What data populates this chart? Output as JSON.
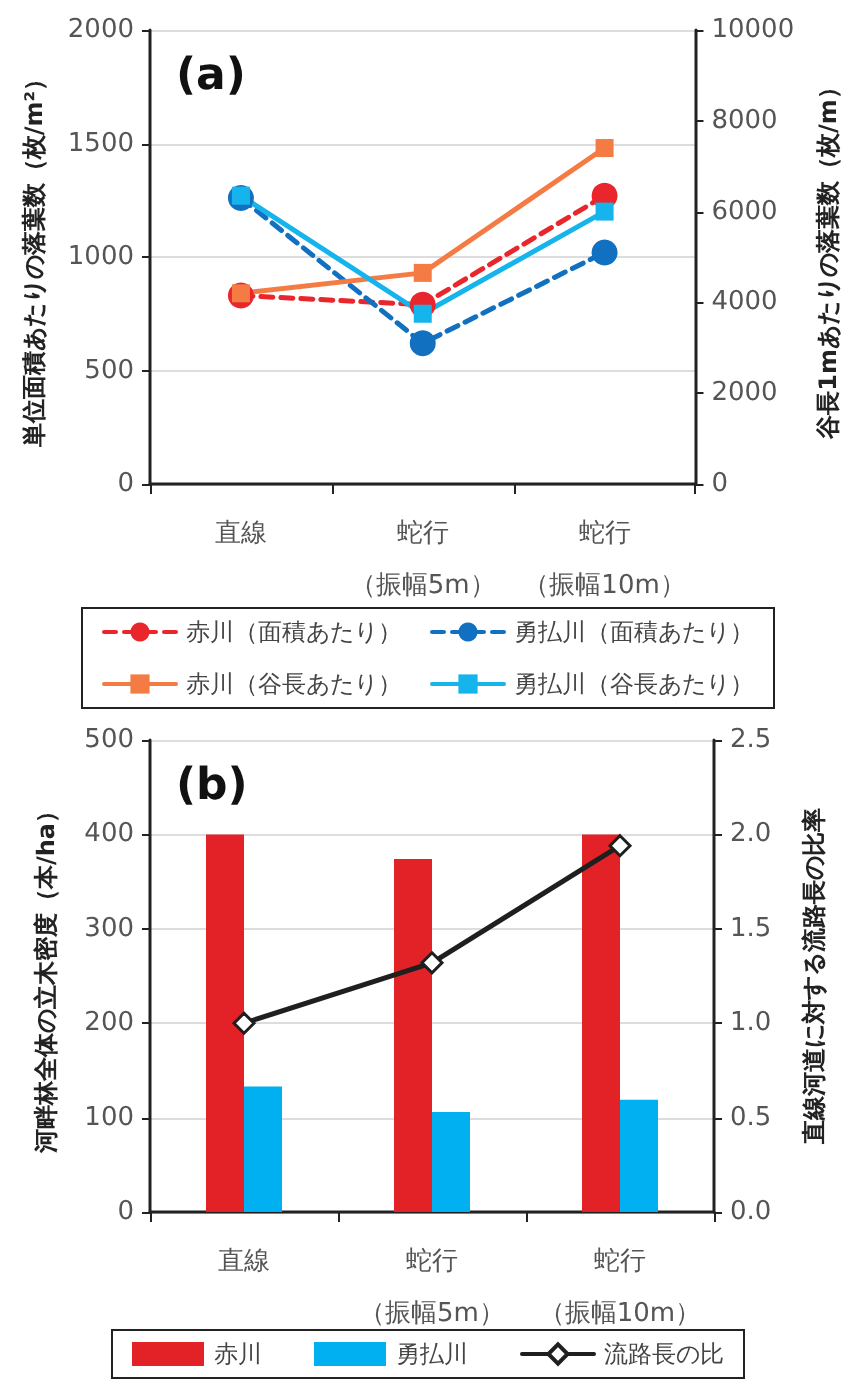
{
  "chart_data": [
    {
      "type": "line",
      "categories": [
        "直線",
        "蛇行（振幅5m）",
        "蛇行（振幅10m）"
      ],
      "ylabel": "単位面積あたりの落葉数（枚/m²）",
      "y2label": "谷長1mあたりの落葉数（枚/m）",
      "ylim": [
        0,
        2000
      ],
      "yticks": [
        0,
        500,
        1000,
        1500,
        2000
      ],
      "y2lim": [
        0,
        10000
      ],
      "y2ticks": [
        0,
        2000,
        4000,
        6000,
        8000,
        10000
      ],
      "grid": "y",
      "legend": "bottom",
      "annotations": [
        "(a)"
      ],
      "series": [
        {
          "name": "赤川（面積あたり）",
          "color": "#e8262b",
          "values": [
            830,
            790,
            1270
          ],
          "marker": "circle",
          "line_style": "dashed"
        },
        {
          "name": "勇払川（面積あたり）",
          "color": "#1170c0",
          "values": [
            1260,
            620,
            1020
          ],
          "marker": "circle",
          "line_style": "dashed"
        },
        {
          "name": "赤川（谷長あたり）",
          "color": "#f47c44",
          "values": [
            4200,
            4650,
            7400
          ],
          "marker": "square",
          "line_style": "solid",
          "axis": "y2"
        },
        {
          "name": "勇払川（谷長あたり）",
          "color": "#15b4ec",
          "values": [
            6350,
            3750,
            6000
          ],
          "marker": "square",
          "line_style": "solid",
          "axis": "y2"
        }
      ]
    },
    {
      "type": "bar",
      "categories": [
        "直線",
        "蛇行（振幅5m）",
        "蛇行（振幅10m）"
      ],
      "ylabel": "河畔林全体の立木密度（本/ha）",
      "y2label": "直線河道に対する流路長の比率",
      "ylim": [
        0,
        500
      ],
      "yticks": [
        0,
        100,
        200,
        300,
        400,
        500
      ],
      "y2lim": [
        0,
        2.5
      ],
      "y2ticks": [
        {
          "value": 0,
          "label": "0.0"
        },
        {
          "value": 0.5,
          "label": "0.5"
        },
        {
          "value": 1,
          "label": "1.0"
        },
        {
          "value": 1.5,
          "label": "1.5"
        },
        {
          "value": 2,
          "label": "2.0"
        },
        {
          "value": 2.5,
          "label": "2.5"
        }
      ],
      "grid": "y",
      "legend": "bottom",
      "annotations": [
        "(b)"
      ],
      "series": [
        {
          "name": "赤川",
          "color": "#e32227",
          "values": [
            400,
            374,
            400
          ]
        },
        {
          "name": "勇払川",
          "color": "#00b0f0",
          "values": [
            133,
            106,
            119
          ]
        },
        {
          "name": "流路長の比",
          "color": "#1f1f1f",
          "type": "line",
          "values": [
            1.0,
            1.32,
            1.94
          ],
          "marker": "diamond",
          "line_style": "solid",
          "axis": "y2"
        }
      ]
    }
  ]
}
